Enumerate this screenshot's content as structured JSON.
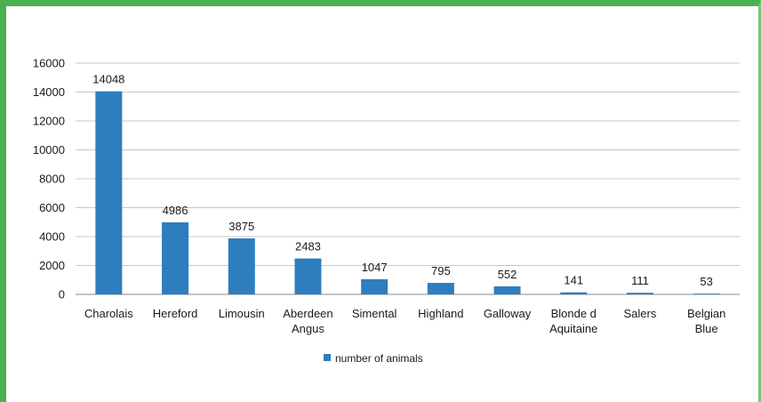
{
  "chart_data": {
    "type": "bar",
    "categories": [
      [
        "Charolais"
      ],
      [
        "Hereford"
      ],
      [
        "Limousin"
      ],
      [
        "Aberdeen",
        "Angus"
      ],
      [
        "Simental"
      ],
      [
        "Highland"
      ],
      [
        "Galloway"
      ],
      [
        "Blonde d",
        "Aquitaine"
      ],
      [
        "Salers"
      ],
      [
        "Belgian",
        "Blue"
      ]
    ],
    "series": [
      {
        "name": "number of animals",
        "values": [
          14048,
          4986,
          3875,
          2483,
          1047,
          795,
          552,
          141,
          111,
          53
        ],
        "color": "#2e7dbf"
      }
    ],
    "ylim": [
      0,
      16000
    ],
    "yticks": [
      0,
      2000,
      4000,
      6000,
      8000,
      10000,
      12000,
      14000,
      16000
    ],
    "grid": true,
    "legend_position": "bottom"
  },
  "colors": {
    "frame": "#4caf50",
    "bar": "#2e7dbf",
    "grid": "#c8c8c8"
  }
}
